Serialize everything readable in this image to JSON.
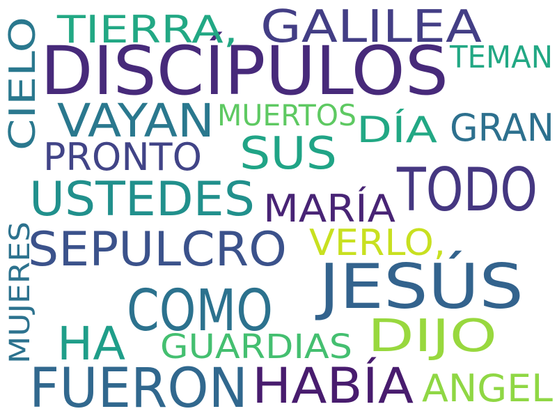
{
  "words": [
    {
      "text": "DISCÍPULOS",
      "color": "#472a7a"
    },
    {
      "text": "JESÚS",
      "color": "#33638d"
    },
    {
      "text": "TODO",
      "color": "#453781"
    },
    {
      "text": "FUERON",
      "color": "#31688e"
    },
    {
      "text": "COMO",
      "color": "#2c728e"
    },
    {
      "text": "GALILEA",
      "color": "#433e85"
    },
    {
      "text": "HABÍA",
      "color": "#481c6e"
    },
    {
      "text": "SEPULCRO",
      "color": "#3b528b"
    },
    {
      "text": "USTEDES",
      "color": "#21908c"
    },
    {
      "text": "VAYAN",
      "color": "#2a788e"
    },
    {
      "text": "DIJO",
      "color": "#98d83e"
    },
    {
      "text": "HA",
      "color": "#1f9e89"
    },
    {
      "text": "SUS",
      "color": "#20a486"
    },
    {
      "text": "TIERRA,",
      "color": "#22a884"
    },
    {
      "text": "GRAN",
      "color": "#2d708e"
    },
    {
      "text": "PRONTO",
      "color": "#414487"
    },
    {
      "text": "MARÍA",
      "color": "#482475"
    },
    {
      "text": "ANGEL",
      "color": "#8fd744"
    },
    {
      "text": "VERLO,",
      "color": "#c8e020"
    },
    {
      "text": "GUARDIAS",
      "color": "#44bf70"
    },
    {
      "text": "DÍA",
      "color": "#22a884"
    },
    {
      "text": "TEMAN",
      "color": "#22a884"
    },
    {
      "text": "MUERTOS",
      "color": "#5ec962"
    },
    {
      "text": "CIELO",
      "color": "#2a788e"
    },
    {
      "text": "MUJERES",
      "color": "#2c728e"
    }
  ]
}
